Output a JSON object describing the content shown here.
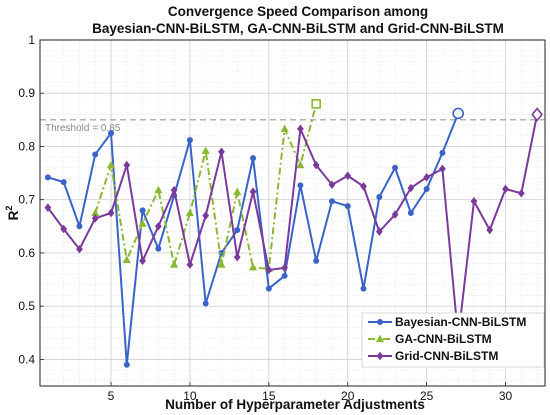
{
  "chart_data": {
    "type": "line",
    "title": [
      "Convergence Speed Comparison among",
      "Bayesian-CNN-BiLSTM, GA-CNN-BiLSTM and Grid-CNN-BiLSTM"
    ],
    "xlabel": "Number of Hyperparameter Adjustments",
    "ylabel": "R",
    "ylabel_superscript": "2",
    "xlim": [
      0.5,
      32.5
    ],
    "ylim": [
      0.35,
      1.0
    ],
    "xticks": [
      5,
      10,
      15,
      20,
      25,
      30
    ],
    "yticks": [
      0.4,
      0.5,
      0.6,
      0.7,
      0.8,
      0.9,
      1.0
    ],
    "ytick_labels": [
      "0.4",
      "0.5",
      "0.6",
      "0.7",
      "0.8",
      "0.9",
      "1"
    ],
    "grid": "on",
    "legend_position": "bottom-right",
    "threshold": {
      "value": 0.85,
      "label": "Threshold = 0.85"
    },
    "series": [
      {
        "name": "Bayesian-CNN-BiLSTM",
        "color": "#3a63c8",
        "style": "solid",
        "marker": "circle",
        "final_marker": "open-circle",
        "x": [
          1,
          2,
          3,
          4,
          5,
          6,
          7,
          8,
          9,
          10,
          11,
          12,
          13,
          14,
          15,
          16,
          17,
          18,
          19,
          20,
          21,
          22,
          23,
          24,
          25,
          26,
          27
        ],
        "y": [
          0.742,
          0.733,
          0.65,
          0.785,
          0.825,
          0.39,
          0.68,
          0.608,
          0.708,
          0.812,
          0.505,
          0.6,
          0.643,
          0.778,
          0.533,
          0.557,
          0.727,
          0.585,
          0.697,
          0.688,
          0.533,
          0.705,
          0.76,
          0.675,
          0.72,
          0.788,
          0.862
        ]
      },
      {
        "name": "GA-CNN-BiLSTM",
        "color": "#8bb832",
        "style": "dash-dot",
        "marker": "triangle",
        "final_marker": "open-square",
        "x": [
          4,
          5,
          6,
          7,
          8,
          9,
          10,
          11,
          12,
          13,
          14,
          15,
          16,
          17,
          18
        ],
        "y": [
          0.675,
          0.765,
          0.587,
          0.655,
          0.718,
          0.578,
          0.675,
          0.792,
          0.578,
          0.715,
          0.573,
          0.57,
          0.833,
          0.765,
          0.88
        ]
      },
      {
        "name": "Grid-CNN-BiLSTM",
        "color": "#7a3a9b",
        "style": "solid",
        "marker": "diamond",
        "final_marker": "open-diamond",
        "x": [
          1,
          2,
          3,
          4,
          5,
          6,
          7,
          8,
          9,
          10,
          11,
          12,
          13,
          14,
          15,
          16,
          17,
          18,
          19,
          20,
          21,
          22,
          23,
          24,
          25,
          26,
          27,
          28,
          29,
          30,
          31,
          32
        ],
        "y": [
          0.685,
          0.645,
          0.607,
          0.665,
          0.675,
          0.765,
          0.585,
          0.65,
          0.718,
          0.578,
          0.67,
          0.79,
          0.592,
          0.715,
          0.568,
          0.572,
          0.833,
          0.765,
          0.728,
          0.745,
          0.725,
          0.64,
          0.672,
          0.722,
          0.742,
          0.758,
          0.44,
          0.697,
          0.643,
          0.72,
          0.712,
          0.86
        ]
      }
    ]
  }
}
